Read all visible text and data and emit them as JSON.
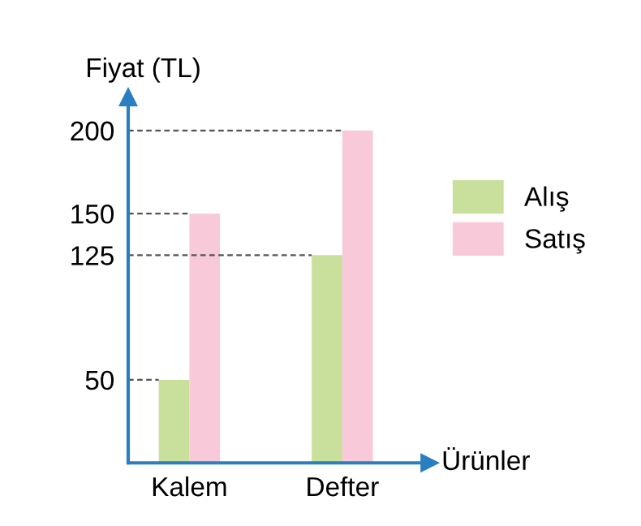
{
  "chart_data": {
    "type": "bar",
    "xlabel": "Ürünler",
    "ylabel": "Fiyat (TL)",
    "categories": [
      "Kalem",
      "Defter"
    ],
    "series": [
      {
        "name": "Alış",
        "color": "#c8e09c",
        "values": [
          50,
          125
        ]
      },
      {
        "name": "Satış",
        "color": "#f8cad9",
        "values": [
          150,
          200
        ]
      }
    ],
    "ylim": [
      0,
      220
    ],
    "yticks": [
      50,
      125,
      150,
      200
    ],
    "ref_lines": [
      {
        "axis": "y",
        "value": 50,
        "line_style": "dashed",
        "color": "#555555"
      },
      {
        "axis": "y",
        "value": 150,
        "line_style": "dashed",
        "color": "#555555"
      },
      {
        "axis": "y",
        "value": 125,
        "line_style": "dashed",
        "color": "#555555"
      },
      {
        "axis": "y",
        "value": 200,
        "line_style": "dashed",
        "color": "#555555"
      }
    ],
    "legend": "right",
    "grid": false
  }
}
